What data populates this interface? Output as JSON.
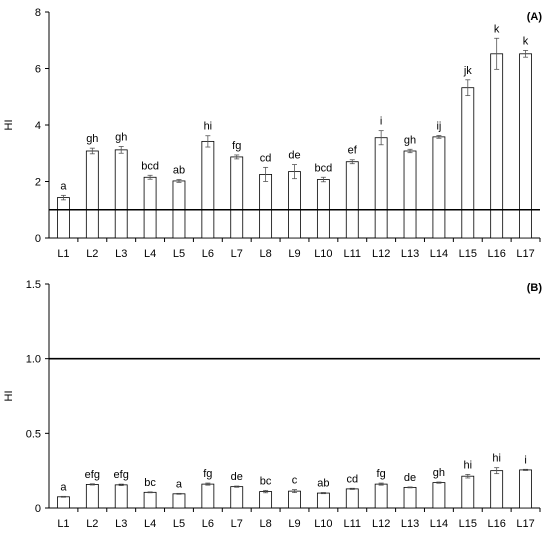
{
  "chart_data": [
    {
      "type": "bar",
      "panel_label": "(A)",
      "ylabel": "HI",
      "xlabel": "",
      "ylim": [
        0,
        8
      ],
      "yticks": [
        "0",
        "2",
        "4",
        "6",
        "8"
      ],
      "reference_line": 1,
      "grid": false,
      "categories": [
        "L1",
        "L2",
        "L3",
        "L4",
        "L5",
        "L6",
        "L7",
        "L8",
        "L9",
        "L10",
        "L11",
        "L12",
        "L13",
        "L14",
        "L15",
        "L16",
        "L17"
      ],
      "values": [
        1.43,
        3.08,
        3.12,
        2.15,
        2.02,
        3.42,
        2.87,
        2.25,
        2.35,
        2.07,
        2.7,
        3.55,
        3.08,
        3.58,
        5.32,
        6.52,
        6.52
      ],
      "errors": [
        0.08,
        0.1,
        0.12,
        0.07,
        0.05,
        0.2,
        0.07,
        0.25,
        0.25,
        0.08,
        0.07,
        0.25,
        0.06,
        0.05,
        0.28,
        0.55,
        0.12
      ],
      "letters": [
        "a",
        "gh",
        "gh",
        "bcd",
        "ab",
        "hi",
        "fg",
        "cd",
        "de",
        "bcd",
        "ef",
        "i",
        "gh",
        "ij",
        "jk",
        "k",
        "k"
      ]
    },
    {
      "type": "bar",
      "panel_label": "(B)",
      "ylabel": "HI",
      "xlabel": "",
      "ylim": [
        0,
        1.5
      ],
      "yticks": [
        "0",
        "0.5",
        "1.0",
        "1.5"
      ],
      "reference_line": 1.0,
      "grid": false,
      "categories": [
        "L1",
        "L2",
        "L3",
        "L4",
        "L5",
        "L6",
        "L7",
        "L8",
        "L9",
        "L10",
        "L11",
        "L12",
        "L13",
        "L14",
        "L15",
        "L16",
        "L17"
      ],
      "values": [
        0.075,
        0.158,
        0.155,
        0.105,
        0.095,
        0.16,
        0.143,
        0.11,
        0.113,
        0.1,
        0.128,
        0.16,
        0.138,
        0.17,
        0.213,
        0.25,
        0.255
      ],
      "errors": [
        0.003,
        0.004,
        0.005,
        0.003,
        0.003,
        0.007,
        0.004,
        0.008,
        0.01,
        0.004,
        0.004,
        0.007,
        0.003,
        0.004,
        0.012,
        0.02,
        0.004
      ],
      "letters": [
        "a",
        "efg",
        "efg",
        "bc",
        "a",
        "fg",
        "de",
        "bc",
        "c",
        "ab",
        "cd",
        "fg",
        "de",
        "gh",
        "hi",
        "hi",
        "i"
      ]
    }
  ]
}
